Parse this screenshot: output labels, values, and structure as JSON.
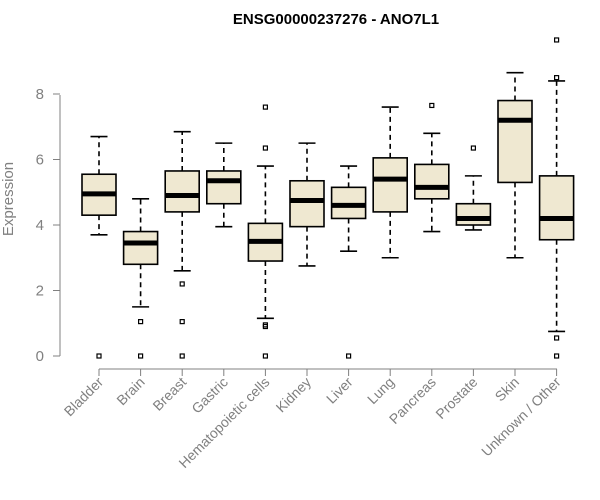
{
  "chart_data": {
    "type": "boxplot",
    "title": "ENSG00000237276 - ANO7L1",
    "ylabel": "Expression",
    "xlabel": "",
    "ylim": [
      0,
      9.8
    ],
    "yticks": [
      0,
      2,
      4,
      6,
      8
    ],
    "box_color": "#efe8d1",
    "categories": [
      "Bladder",
      "Brain",
      "Breast",
      "Gastric",
      "Hematopoietic cells",
      "Kidney",
      "Liver",
      "Lung",
      "Pancreas",
      "Prostate",
      "Skin",
      "Unknown / Other"
    ],
    "boxes": [
      {
        "whisker_low": 3.7,
        "q1": 4.3,
        "median": 4.95,
        "q3": 5.55,
        "whisker_high": 6.7,
        "outliers": [
          0
        ]
      },
      {
        "whisker_low": 1.5,
        "q1": 2.8,
        "median": 3.45,
        "q3": 3.8,
        "whisker_high": 4.8,
        "outliers": [
          1.05,
          0
        ]
      },
      {
        "whisker_low": 2.6,
        "q1": 4.4,
        "median": 4.9,
        "q3": 5.65,
        "whisker_high": 6.85,
        "outliers": [
          2.2,
          1.05,
          0
        ]
      },
      {
        "whisker_low": 3.95,
        "q1": 4.65,
        "median": 5.35,
        "q3": 5.65,
        "whisker_high": 6.5,
        "outliers": []
      },
      {
        "whisker_low": 1.15,
        "q1": 2.9,
        "median": 3.5,
        "q3": 4.05,
        "whisker_high": 5.8,
        "outliers": [
          7.6,
          6.35,
          0.95,
          0.9,
          0
        ]
      },
      {
        "whisker_low": 2.75,
        "q1": 3.95,
        "median": 4.75,
        "q3": 5.35,
        "whisker_high": 6.5,
        "outliers": []
      },
      {
        "whisker_low": 3.2,
        "q1": 4.2,
        "median": 4.6,
        "q3": 5.15,
        "whisker_high": 5.8,
        "outliers": [
          0
        ]
      },
      {
        "whisker_low": 3.0,
        "q1": 4.4,
        "median": 5.4,
        "q3": 6.05,
        "whisker_high": 7.6,
        "outliers": []
      },
      {
        "whisker_low": 3.8,
        "q1": 4.8,
        "median": 5.15,
        "q3": 5.85,
        "whisker_high": 6.8,
        "outliers": [
          7.65
        ]
      },
      {
        "whisker_low": 3.85,
        "q1": 4.0,
        "median": 4.2,
        "q3": 4.65,
        "whisker_high": 5.5,
        "outliers": [
          6.35
        ]
      },
      {
        "whisker_low": 3.0,
        "q1": 5.3,
        "median": 7.2,
        "q3": 7.8,
        "whisker_high": 8.65,
        "outliers": []
      },
      {
        "whisker_low": 0.75,
        "q1": 3.55,
        "median": 4.2,
        "q3": 5.5,
        "whisker_high": 8.4,
        "outliers": [
          9.65,
          8.5,
          0.55,
          0
        ]
      }
    ]
  }
}
